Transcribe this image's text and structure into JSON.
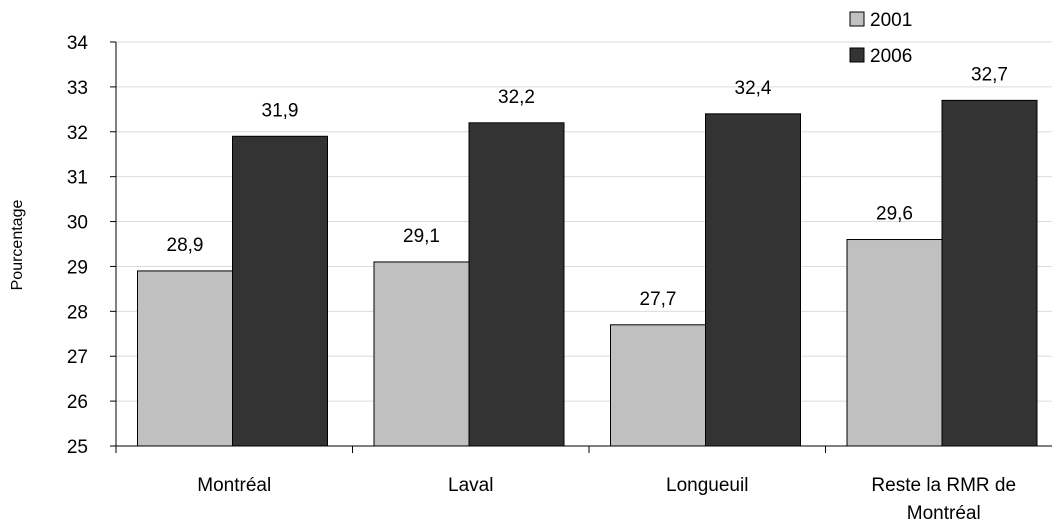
{
  "chart_data": {
    "type": "bar",
    "title": "",
    "xlabel": "",
    "ylabel": "Pourcentage",
    "ylim": [
      25,
      34
    ],
    "yticks": [
      "25",
      "26",
      "27",
      "28",
      "29",
      "30",
      "31",
      "32",
      "33",
      "34"
    ],
    "categories": [
      [
        "Montréal"
      ],
      [
        "Laval"
      ],
      [
        "Longueuil"
      ],
      [
        "Reste la RMR de",
        "Montréal"
      ]
    ],
    "series": [
      {
        "name": "2001",
        "color": "#c0c0c0",
        "values": [
          28.9,
          29.1,
          27.7,
          29.6
        ],
        "labels": [
          "28,9",
          "29,1",
          "27,7",
          "29,6"
        ]
      },
      {
        "name": "2006",
        "color": "#333333",
        "values": [
          31.9,
          32.2,
          32.4,
          32.7
        ],
        "labels": [
          "31,9",
          "32,2",
          "32,4",
          "32,7"
        ]
      }
    ],
    "grid": true,
    "legend": "top-right"
  }
}
